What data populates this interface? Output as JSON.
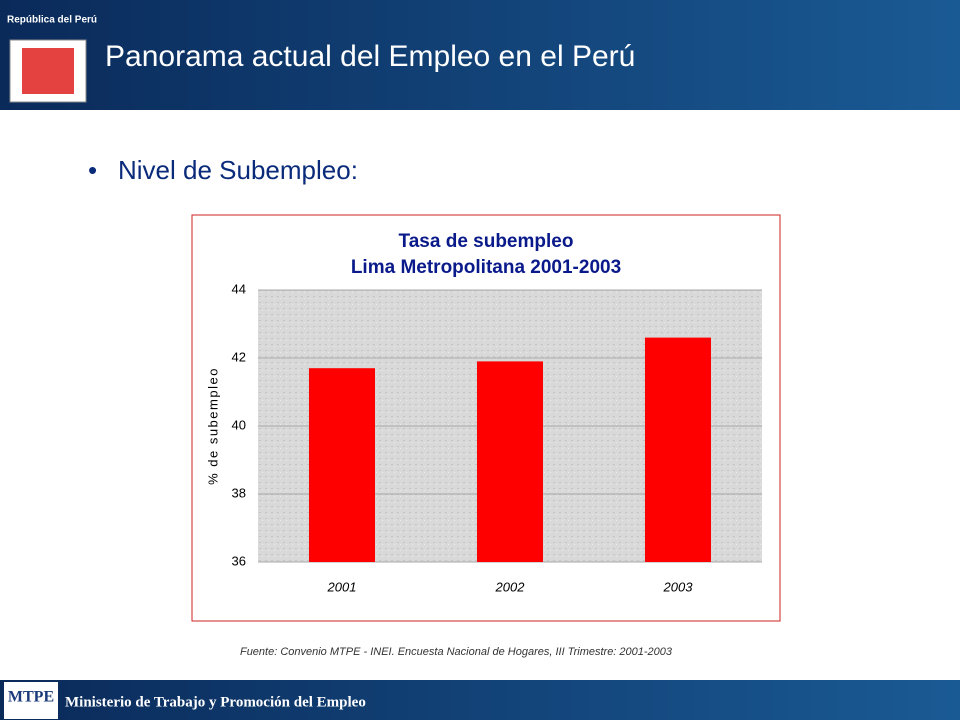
{
  "header": {
    "title": "Panorama actual del Empleo en el Perú",
    "emblem_text": "República del Perú"
  },
  "bullet": "Nivel de Subempleo:",
  "chart_data": {
    "type": "bar",
    "title": "Tasa de subempleo",
    "subtitle": "Lima Metropolitana 2001-2003",
    "y_label": "% de subempleo",
    "categories": [
      "2001",
      "2002",
      "2003"
    ],
    "values": [
      41.7,
      41.9,
      42.6
    ],
    "color": "#ff0000",
    "ylim": [
      36,
      44
    ],
    "yticks": [
      36,
      38,
      40,
      42,
      44
    ],
    "grid": true
  },
  "source": "Fuente: Convenio MTPE - INEI. Encuesta Nacional de Hogares, III Trimestre: 2001-2003",
  "footer": {
    "logo": "MTPE",
    "text": "Ministerio de Trabajo y Promoción del Empleo"
  }
}
